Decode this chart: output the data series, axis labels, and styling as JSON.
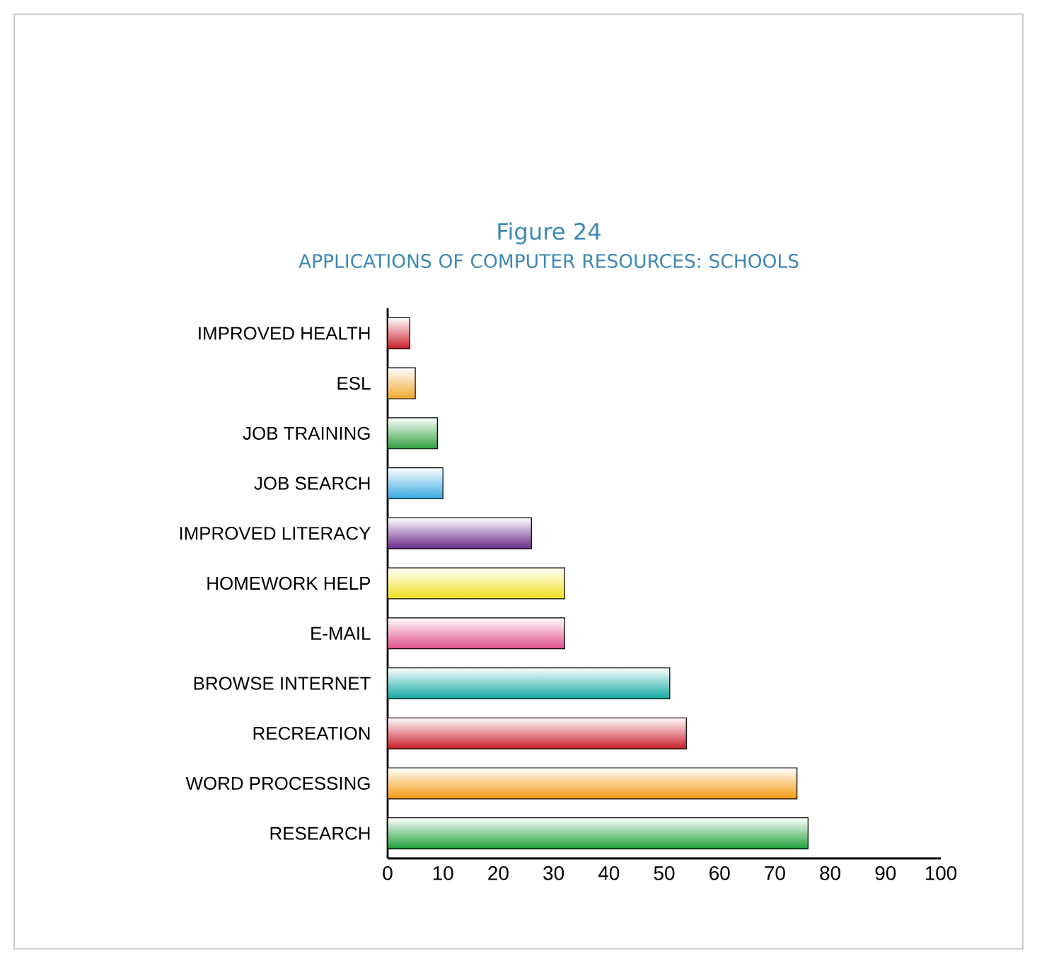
{
  "chart_data": {
    "type": "bar",
    "orientation": "horizontal",
    "title": "APPLICATIONS OF COMPUTER RESOURCES: SCHOOLS",
    "annotations": [
      "Figure 24"
    ],
    "categories": [
      "IMPROVED HEALTH",
      "ESL",
      "JOB TRAINING",
      "JOB SEARCH",
      "IMPROVED LITERACY",
      "HOMEWORK HELP",
      "E-MAIL",
      "BROWSE INTERNET",
      "RECREATION",
      "WORD PROCESSING",
      "RESEARCH"
    ],
    "values": [
      4,
      5,
      9,
      10,
      26,
      32,
      32,
      51,
      54,
      74,
      76
    ],
    "colors": [
      "#c8202a",
      "#f0a830",
      "#2e9e3e",
      "#3aa8e0",
      "#6a2a8a",
      "#f0e020",
      "#e0508a",
      "#10a8a0",
      "#c81e2a",
      "#f59a10",
      "#1ea03a"
    ],
    "xlim": [
      0,
      100
    ],
    "xticks": [
      0,
      10,
      20,
      30,
      40,
      50,
      60,
      70,
      80,
      90,
      100
    ]
  }
}
